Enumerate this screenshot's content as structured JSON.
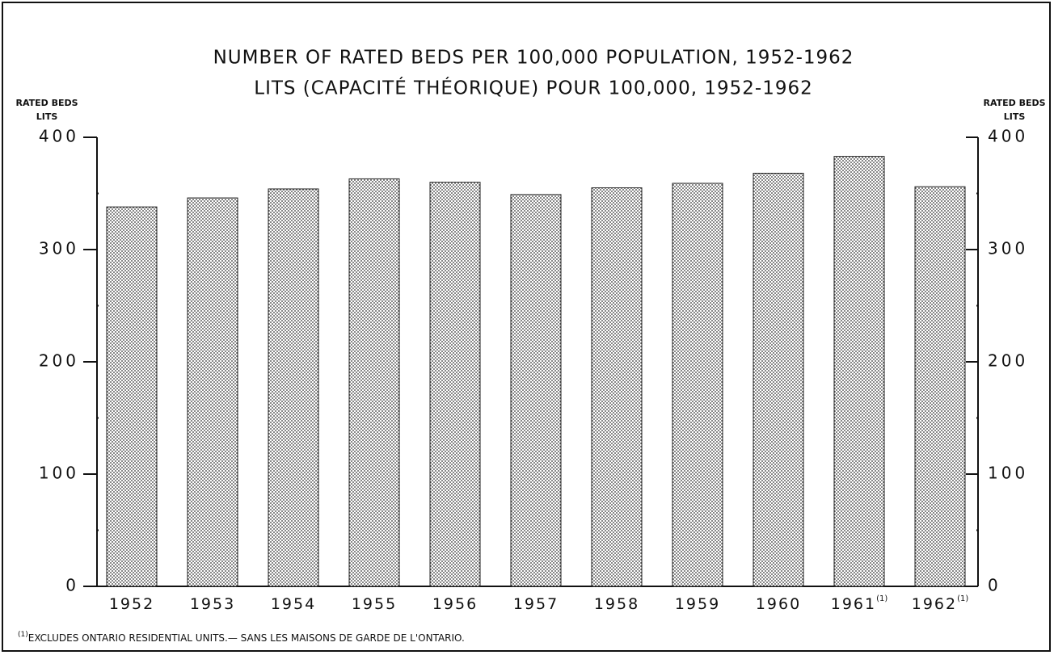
{
  "chart_data": {
    "type": "bar",
    "title": "NUMBER OF RATED BEDS PER 100,000 POPULATION, 1952-1962",
    "subtitle": "LITS (CAPACITÉ THÉORIQUE) POUR 100,000, 1952-1962",
    "ylabel": [
      "RATED BEDS",
      "LITS"
    ],
    "y2label": [
      "RATED BEDS",
      "LITS"
    ],
    "categories": [
      "1952",
      "1953",
      "1954",
      "1955",
      "1956",
      "1957",
      "1958",
      "1959",
      "1960",
      "1961",
      "1962"
    ],
    "category_notes": [
      null,
      null,
      null,
      null,
      null,
      null,
      null,
      null,
      null,
      "(1)",
      "(1)"
    ],
    "values": [
      338,
      346,
      354,
      363,
      360,
      349,
      355,
      359,
      368,
      383,
      356
    ],
    "ylim": [
      0,
      400
    ],
    "yticks": [
      0,
      100,
      200,
      300,
      400
    ],
    "minor_yticks": [
      50,
      150,
      250,
      350
    ],
    "y2lim": [
      0,
      400
    ],
    "y2ticks": [
      0,
      100,
      200,
      300,
      400
    ],
    "footnote": {
      "marker": "(1)",
      "text": "EXCLUDES ONTARIO RESIDENTIAL UNITS.— SANS LES MAISONS DE GARDE DE L'ONTARIO."
    }
  }
}
